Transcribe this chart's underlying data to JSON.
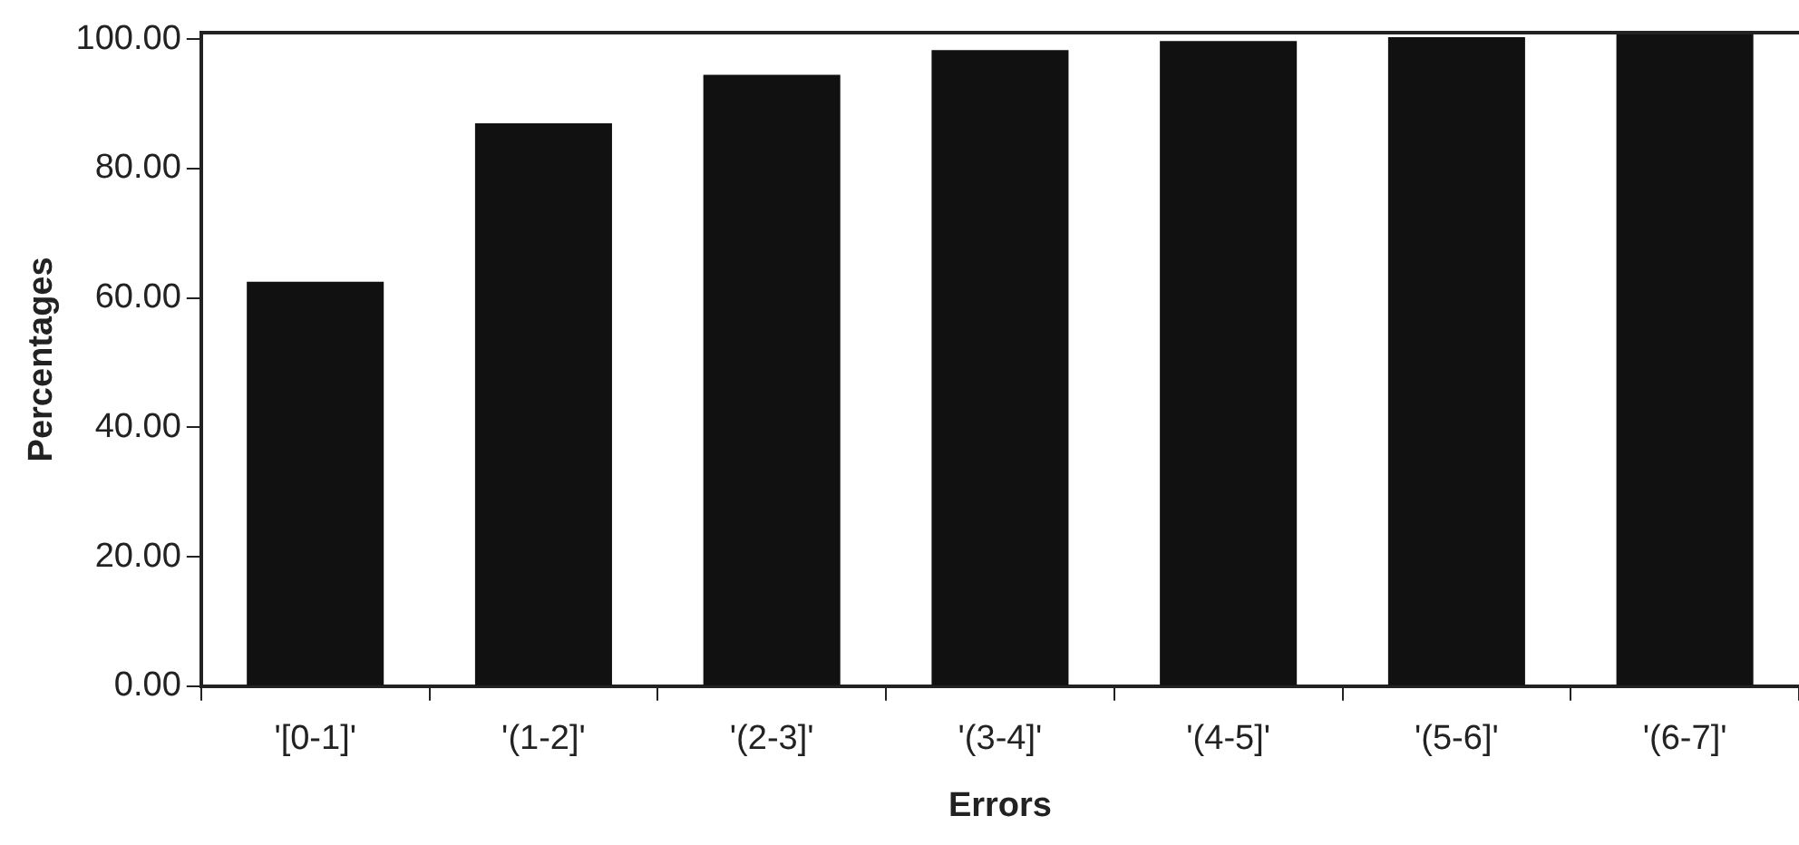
{
  "chart_data": {
    "type": "bar",
    "xlabel": "Errors",
    "ylabel": "Percentages",
    "categories": [
      "'[0-1]'",
      "'(1-2]'",
      "'(2-3]'",
      "'(3-4]'",
      "'(4-5]'",
      "'(5-6]'",
      "'(6-7]'"
    ],
    "values": [
      62.5,
      87,
      94.5,
      98.3,
      99.7,
      100.3,
      101
    ],
    "color": "#111111",
    "ylim": [
      0,
      101
    ],
    "yticks": [
      {
        "value": 0,
        "label": "0.00"
      },
      {
        "value": 20,
        "label": "20.00"
      },
      {
        "value": 40,
        "label": "40.00"
      },
      {
        "value": 60,
        "label": "60.00"
      },
      {
        "value": 80,
        "label": "80.00"
      },
      {
        "value": 100,
        "label": "100.00"
      }
    ],
    "grid": false,
    "legend": false
  }
}
